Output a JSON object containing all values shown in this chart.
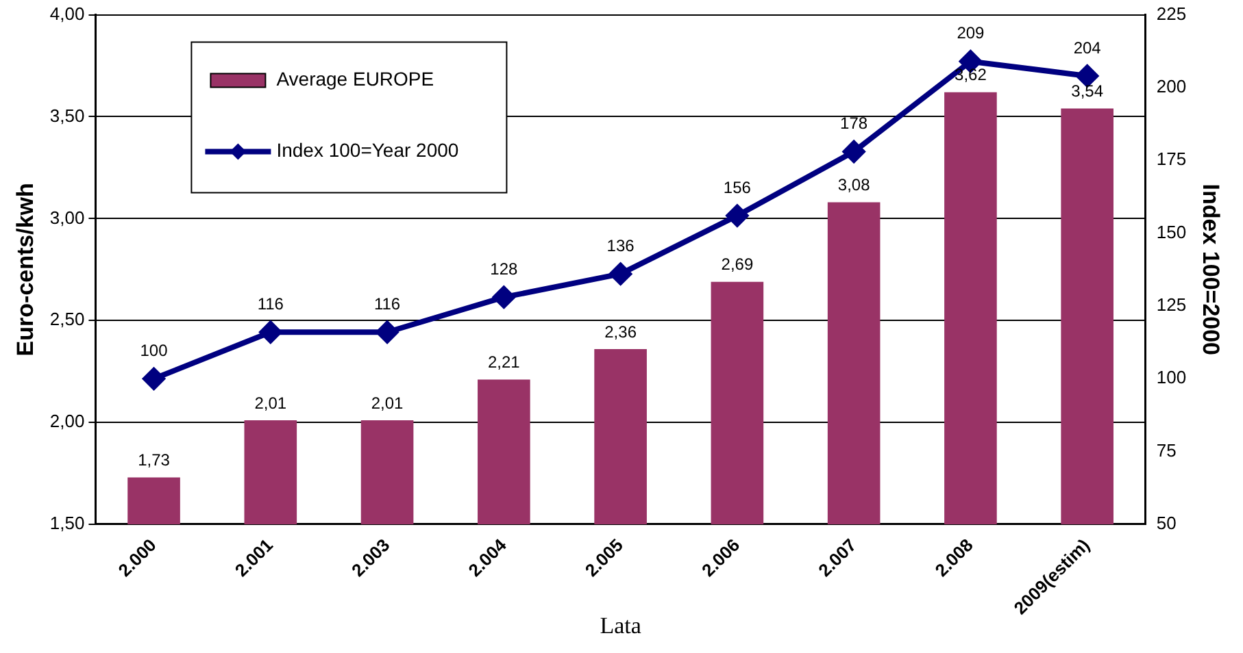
{
  "chart_data": {
    "type": "bar",
    "xlabel": "Lata",
    "ylabel": "Euro-cents/kwh",
    "y2label": "Index 100=2000",
    "categories": [
      "2.000",
      "2.001",
      "2.003",
      "2.004",
      "2.005",
      "2.006",
      "2.007",
      "2.008",
      "2009(estim)"
    ],
    "series": [
      {
        "name": "Average EUROPE",
        "color": "#993366",
        "values": [
          1.73,
          2.01,
          2.01,
          2.21,
          2.36,
          2.69,
          3.08,
          3.62,
          3.54
        ],
        "value_labels": [
          "1,73",
          "2,01",
          "2,01",
          "2,21",
          "2,36",
          "2,69",
          "3,08",
          "3,62",
          "3,54"
        ]
      },
      {
        "name": "Index 100=Year 2000",
        "type": "line",
        "axis": "y2",
        "color": "#000080",
        "marker": "diamond",
        "values": [
          100,
          116,
          116,
          128,
          136,
          156,
          178,
          209,
          204
        ],
        "value_labels": [
          "100",
          "116",
          "116",
          "128",
          "136",
          "156",
          "178",
          "209",
          "204"
        ]
      }
    ],
    "ylim": [
      1.5,
      4.0
    ],
    "yticks": [
      {
        "value": 1.5,
        "label": "1,50"
      },
      {
        "value": 2.0,
        "label": "2,00"
      },
      {
        "value": 2.5,
        "label": "2,50"
      },
      {
        "value": 3.0,
        "label": "3,00"
      },
      {
        "value": 3.5,
        "label": "3,50"
      },
      {
        "value": 4.0,
        "label": "4,00"
      }
    ],
    "y2lim": [
      50,
      225
    ],
    "y2ticks": [
      50,
      75,
      100,
      125,
      150,
      175,
      200,
      225
    ],
    "grid": "y",
    "legend": "top left"
  }
}
